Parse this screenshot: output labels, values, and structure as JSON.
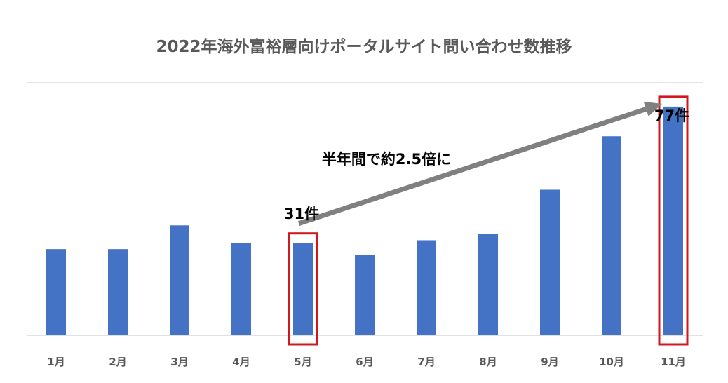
{
  "chart_data": {
    "type": "bar",
    "title": "2022年海外富裕層向けポータルサイト問い合わせ数推移",
    "categories": [
      "1月",
      "2月",
      "3月",
      "4月",
      "5月",
      "6月",
      "7月",
      "8月",
      "9月",
      "10月",
      "11月"
    ],
    "values": [
      29,
      29,
      37,
      31,
      31,
      27,
      32,
      34,
      49,
      67,
      77
    ],
    "ylim": [
      0,
      85
    ],
    "grid": false,
    "legend": "none",
    "annotations": {
      "start_label": "31件",
      "end_label": "77件",
      "arrow_label": "半年間で約2.5倍に",
      "highlighted_categories": [
        "5月",
        "11月"
      ]
    }
  },
  "colors": {
    "bar": "#4472C4",
    "highlight_box": "#D0191F",
    "arrow": "#808080",
    "axis_line": "#D9D9D9",
    "title_text": "#595959"
  }
}
